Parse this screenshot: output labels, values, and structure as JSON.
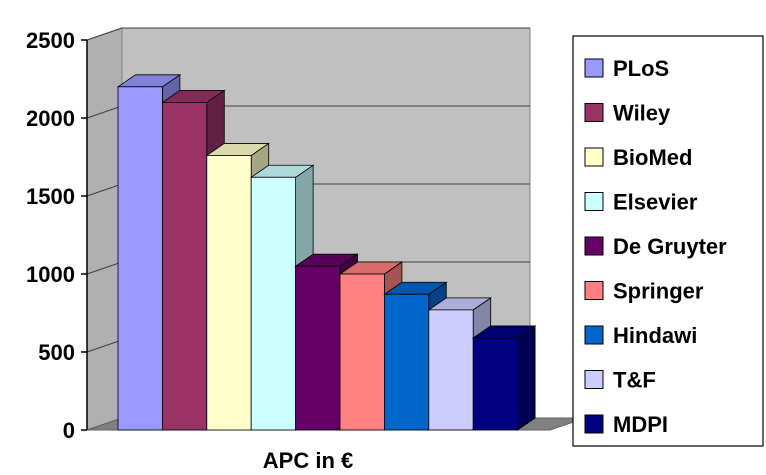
{
  "chart_data": {
    "type": "bar",
    "title": "",
    "xlabel": "APC in €",
    "ylabel": "",
    "ylim": [
      0,
      2500
    ],
    "yticks": [
      0,
      500,
      1000,
      1500,
      2000,
      2500
    ],
    "grid": true,
    "legend_position": "right",
    "series": [
      {
        "name": "PLoS",
        "value": 2200,
        "color": "#9999ff"
      },
      {
        "name": "Wiley",
        "value": 2100,
        "color": "#993366"
      },
      {
        "name": "BioMed",
        "value": 1760,
        "color": "#ffffcc"
      },
      {
        "name": "Elsevier",
        "value": 1620,
        "color": "#ccffff"
      },
      {
        "name": "De Gruyter",
        "value": 1050,
        "color": "#660066"
      },
      {
        "name": "Springer",
        "value": 1000,
        "color": "#ff8080"
      },
      {
        "name": "Hindawi",
        "value": 870,
        "color": "#0066cc"
      },
      {
        "name": "T&F",
        "value": 770,
        "color": "#ccccff"
      },
      {
        "name": "MDPI",
        "value": 590,
        "color": "#000080"
      }
    ]
  }
}
